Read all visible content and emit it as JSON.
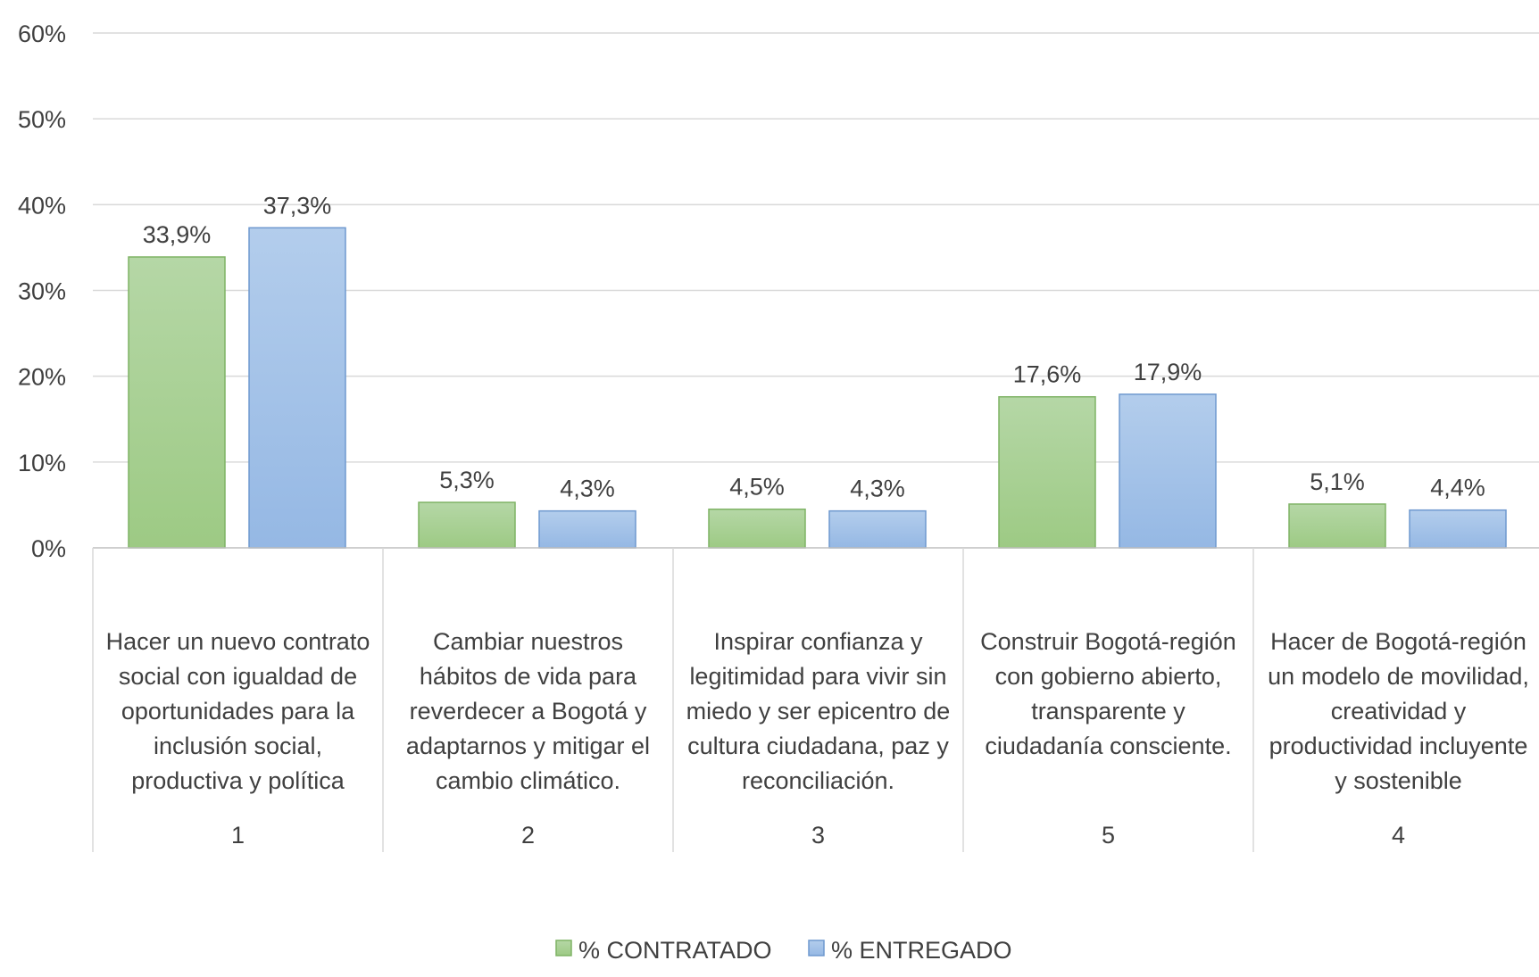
{
  "chart_data": {
    "type": "bar",
    "title": "",
    "xlabel": "",
    "ylabel": "",
    "ylim": [
      0,
      0.6
    ],
    "y_ticks": [
      "0%",
      "10%",
      "20%",
      "30%",
      "40%",
      "50%",
      "60%"
    ],
    "grid": true,
    "legend_position": "bottom",
    "categories": [
      {
        "number": "1",
        "label_lines": [
          "Hacer un nuevo contrato",
          "social con igualdad de",
          "oportunidades para la",
          "inclusión social,",
          "productiva y política"
        ]
      },
      {
        "number": "2",
        "label_lines": [
          "Cambiar nuestros",
          "hábitos de vida para",
          "reverdecer a Bogotá y",
          "adaptarnos y mitigar el",
          "cambio climático."
        ]
      },
      {
        "number": "3",
        "label_lines": [
          "Inspirar confianza y",
          "legitimidad para vivir sin",
          "miedo y ser epicentro de",
          "cultura ciudadana, paz y",
          "reconciliación."
        ]
      },
      {
        "number": "5",
        "label_lines": [
          "Construir Bogotá-región",
          "con gobierno abierto,",
          "transparente y",
          "ciudadanía consciente."
        ]
      },
      {
        "number": "4",
        "label_lines": [
          "Hacer de Bogotá-región",
          "un modelo de movilidad,",
          "creatividad y",
          "productividad incluyente",
          "y sostenible"
        ]
      }
    ],
    "series": [
      {
        "name": "% CONTRATADO",
        "values": [
          0.339,
          0.053,
          0.045,
          0.176,
          0.051
        ],
        "labels": [
          "33,9%",
          "5,3%",
          "4,5%",
          "17,6%",
          "5,1%"
        ],
        "color_top": "#b5d7a6",
        "color_bottom": "#9dca84",
        "border": "#7fb365"
      },
      {
        "name": "% ENTREGADO",
        "values": [
          0.373,
          0.043,
          0.043,
          0.179,
          0.044
        ],
        "labels": [
          "37,3%",
          "4,3%",
          "4,3%",
          "17,9%",
          "4,4%"
        ],
        "color_top": "#b3cdec",
        "color_bottom": "#95b8e4",
        "border": "#6f99cf"
      }
    ]
  }
}
